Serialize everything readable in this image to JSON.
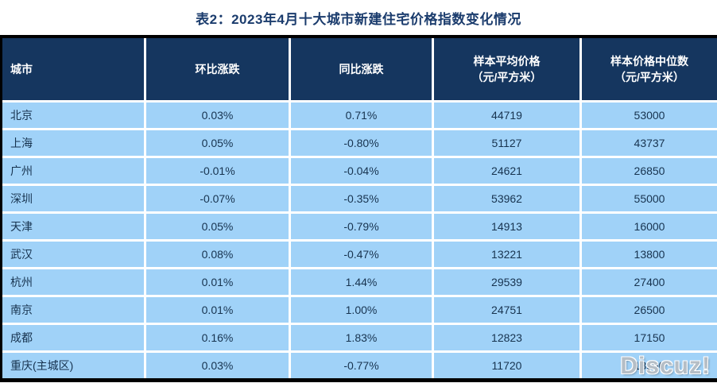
{
  "title": "表2：2023年4月十大城市新建住宅价格指数变化情况",
  "table": {
    "columns": [
      {
        "label": "城市",
        "sub": ""
      },
      {
        "label": "环比涨跌",
        "sub": ""
      },
      {
        "label": "同比涨跌",
        "sub": ""
      },
      {
        "label": "样本平均价格",
        "sub": "（元/平方米）"
      },
      {
        "label": "样本价格中位数",
        "sub": "（元/平方米）"
      }
    ],
    "rows": [
      {
        "city": "北京",
        "mom": "0.03%",
        "yoy": "0.71%",
        "avg": "44719",
        "median": "53000"
      },
      {
        "city": "上海",
        "mom": "0.05%",
        "yoy": "-0.80%",
        "avg": "51127",
        "median": "43737"
      },
      {
        "city": "广州",
        "mom": "-0.01%",
        "yoy": "-0.04%",
        "avg": "24621",
        "median": "26850"
      },
      {
        "city": "深圳",
        "mom": "-0.07%",
        "yoy": "-0.35%",
        "avg": "53962",
        "median": "55000"
      },
      {
        "city": "天津",
        "mom": "0.05%",
        "yoy": "-0.79%",
        "avg": "14913",
        "median": "16000"
      },
      {
        "city": "武汉",
        "mom": "0.08%",
        "yoy": "-0.47%",
        "avg": "13221",
        "median": "13800"
      },
      {
        "city": "杭州",
        "mom": "0.01%",
        "yoy": "1.44%",
        "avg": "29539",
        "median": "27400"
      },
      {
        "city": "南京",
        "mom": "0.01%",
        "yoy": "1.00%",
        "avg": "24751",
        "median": "26500"
      },
      {
        "city": "成都",
        "mom": "0.16%",
        "yoy": "1.83%",
        "avg": "12823",
        "median": "17150"
      },
      {
        "city": "重庆(主城区)",
        "mom": "0.03%",
        "yoy": "-0.77%",
        "avg": "11720",
        "median": "13550"
      }
    ]
  },
  "watermark": "Discuz!",
  "colors": {
    "header_bg": "#15365F",
    "row_bg": "#A0D2F8",
    "title_color": "#1B3C6D",
    "cell_text": "#17334F",
    "header_text": "#FFFFFF",
    "border_color": "#000000",
    "watermark_color": "#B5BEC6"
  }
}
